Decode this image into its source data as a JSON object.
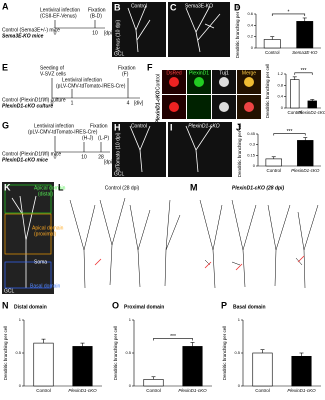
{
  "A": {
    "letter": "A",
    "infection": "Lentiviral infection",
    "vector": "(CSII-EF-Venus)",
    "fixation": "Fixation",
    "fix_panels": "(B-D)",
    "group1": "Control (Sema3E+/-) mice",
    "group2": "Sema3E-KO mice",
    "t0": "0",
    "t1": "10",
    "unit": "[dpi]"
  },
  "B": {
    "letter": "B",
    "label": "Control",
    "stain": "Venus (10 dpi)",
    "layer": "GCL"
  },
  "C": {
    "letter": "C",
    "label": "Sema3E-KO"
  },
  "E": {
    "letter": "E",
    "seeding": "Seeding of",
    "cells": "V-SVZ cells",
    "infection": "Lentiviral infection",
    "vector": "(pLV-CMV-tdTomato-IRES-Cre)",
    "fixation": "Fixation",
    "fix_panels": "(F)",
    "group1": "Control (PlexinD1fl/fl) culture",
    "group2": "PlexinD1-cKO culture",
    "t0": "0",
    "t1": "1",
    "t2": "4",
    "unit": "[div]"
  },
  "F": {
    "letter": "F",
    "c1": "DsRed",
    "c2": "PlexinD1",
    "c3": "Tuj1",
    "c4": "Merge",
    "r1": "Control",
    "r2": "PlexinD1-cKO"
  },
  "G": {
    "letter": "G",
    "infection": "Lentiviral infection",
    "vector": "(pLV-CMV-tdTomato-IRES-Cre)",
    "fixation": "Fixation",
    "fix1": "(H-J)",
    "fix2": "(L-P)",
    "group1": "Control (PlexinD1fl/fl) mice",
    "group2": "PlexinD1-cKO mice",
    "t0": "0",
    "t1": "10",
    "t2": "28",
    "unit": "[dpi]"
  },
  "H": {
    "letter": "H",
    "label": "Control",
    "stain": "tdTomato (10 dpi)",
    "layer": "GCL"
  },
  "I": {
    "letter": "I",
    "label": "PlexinD1-cKO"
  },
  "K": {
    "letter": "K",
    "apical": "Apical domain",
    "distal": "(distal)",
    "apical2": "Apical domain",
    "proximal": "(proximal)",
    "soma": "Soma",
    "basal": "Basal domain",
    "layer": "GCL"
  },
  "L": {
    "letter": "L",
    "label": "Control (28 dpi)"
  },
  "M": {
    "letter": "M",
    "label": "PlexinD1-cKO (28 dpi)"
  },
  "charts": [
    {
      "letter": "D",
      "ylabel": "Dendritic branching per cell",
      "categories": [
        "Control",
        "Sema3E-KO"
      ],
      "values": [
        0.15,
        0.47
      ],
      "errors": [
        0.05,
        0.06
      ],
      "colors": [
        "#ffffff",
        "#000000"
      ],
      "ylim": [
        0,
        0.6
      ],
      "yticks": [
        0,
        0.2,
        0.4,
        0.6
      ],
      "sig": "*"
    },
    {
      "letter": "",
      "ylabel": "Dendritic branching per cell",
      "categories": [
        "Control",
        "PlexinD1-cKO"
      ],
      "values": [
        1.0,
        0.25
      ],
      "errors": [
        0.1,
        0.05
      ],
      "colors": [
        "#ffffff",
        "#000000"
      ],
      "ylim": [
        0,
        1.2
      ],
      "yticks": [
        0,
        0.4,
        0.8,
        1.2
      ],
      "sig": "***"
    },
    {
      "letter": "J",
      "ylabel": "Dendritic branching per cell",
      "categories": [
        "Control",
        "PlexinD1-cKO"
      ],
      "values": [
        0.1,
        0.36
      ],
      "errors": [
        0.03,
        0.04
      ],
      "colors": [
        "#ffffff",
        "#000000"
      ],
      "ylim": [
        0,
        0.45
      ],
      "yticks": [
        0,
        0.15,
        0.3,
        0.45
      ],
      "sig": "***"
    },
    {
      "letter": "N",
      "title": "Distal domain",
      "ylabel": "Dendritic branching per cell",
      "categories": [
        "Control",
        "PlexinD1-cKO"
      ],
      "values": [
        0.65,
        0.6
      ],
      "errors": [
        0.06,
        0.05
      ],
      "colors": [
        "#ffffff",
        "#000000"
      ],
      "ylim": [
        0,
        1
      ],
      "yticks": [
        0,
        0.5,
        1
      ]
    },
    {
      "letter": "O",
      "title": "Proximal domain",
      "ylabel": "Dendritic branching per cell",
      "categories": [
        "Control",
        "PlexinD1-cKO"
      ],
      "values": [
        0.1,
        0.6
      ],
      "errors": [
        0.04,
        0.06
      ],
      "colors": [
        "#ffffff",
        "#000000"
      ],
      "ylim": [
        0,
        1
      ],
      "yticks": [
        0,
        0.5,
        1
      ],
      "sig": "***"
    },
    {
      "letter": "P",
      "title": "Basal domain",
      "ylabel": "Dendritic branching per cell",
      "categories": [
        "Control",
        "PlexinD1-cKO"
      ],
      "values": [
        0.5,
        0.45
      ],
      "errors": [
        0.05,
        0.05
      ],
      "colors": [
        "#ffffff",
        "#000000"
      ],
      "ylim": [
        0,
        1
      ],
      "yticks": [
        0,
        0.5,
        1
      ]
    }
  ]
}
